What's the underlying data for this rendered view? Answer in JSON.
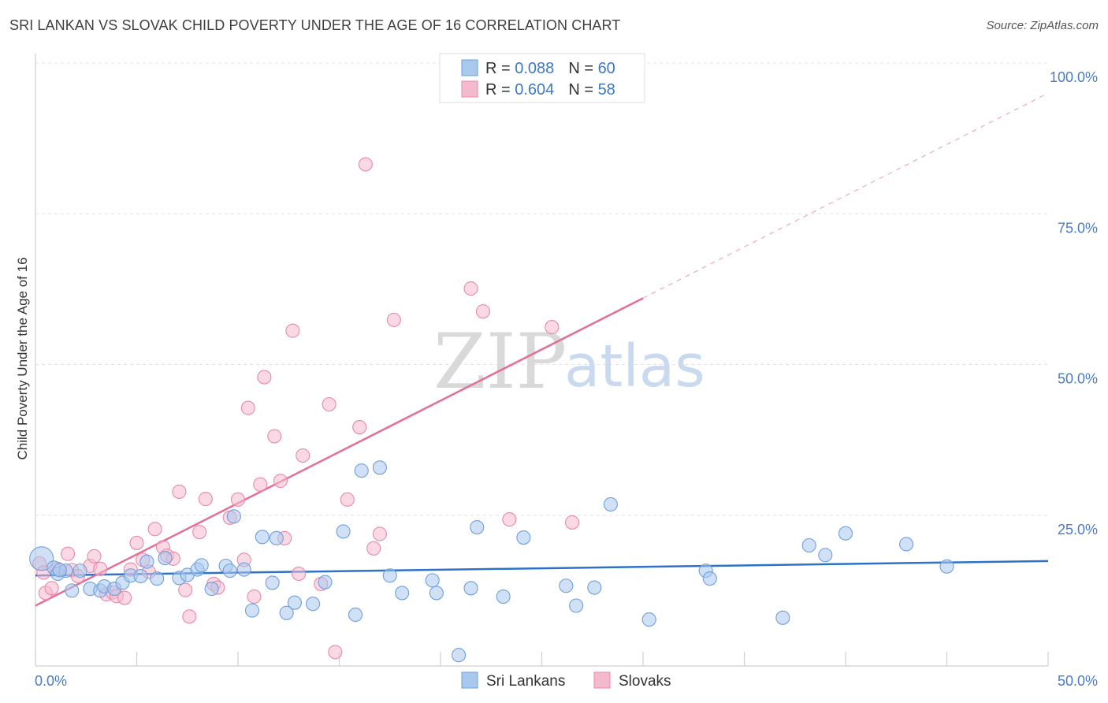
{
  "title": "SRI LANKAN VS SLOVAK CHILD POVERTY UNDER THE AGE OF 16 CORRELATION CHART",
  "source": "Source: ZipAtlas.com",
  "watermark": {
    "zip": "ZIP",
    "atlas": "atlas"
  },
  "colors": {
    "blue_fill": "#a9c8ee",
    "blue_stroke": "#6f9fdc",
    "blue_line": "#2d72c8",
    "pink_fill": "#f5b9cd",
    "pink_stroke": "#e889a8",
    "pink_line": "#e46f96",
    "grid": "#e3e3e3",
    "axis": "#cfcfcf",
    "tick_label": "#4a7cc4"
  },
  "legend": {
    "rows": [
      {
        "r_label": "R = ",
        "r_value": "0.088",
        "n_label": "N = ",
        "n_value": "60"
      },
      {
        "r_label": "R = ",
        "r_value": "0.604",
        "n_label": "N = ",
        "n_value": "58"
      }
    ]
  },
  "bottom_legend": [
    "Sri Lankans",
    "Slovaks"
  ],
  "chart_data": {
    "type": "scatter",
    "title": "SRI LANKAN VS SLOVAK CHILD POVERTY UNDER THE AGE OF 16 CORRELATION CHART",
    "xlabel": "",
    "ylabel": "Child Poverty Under the Age of 16",
    "xlim": [
      0,
      50
    ],
    "ylim": [
      0,
      100
    ],
    "x_tick_labels": [
      "0.0%",
      "50.0%"
    ],
    "y_ticks": [
      25,
      50,
      75,
      100
    ],
    "y_tick_labels": [
      "25.0%",
      "50.0%",
      "75.0%",
      "100.0%"
    ],
    "grid": true,
    "legend_position": "top-center",
    "series": [
      {
        "name": "Sri Lankans",
        "r": 0.088,
        "n": 60,
        "trend": {
          "x": [
            0,
            50
          ],
          "y": [
            15.0,
            17.4
          ],
          "style": "solid"
        },
        "points": [
          [
            0.3,
            17.8
          ],
          [
            0.9,
            16.3
          ],
          [
            1.1,
            15.3
          ],
          [
            1.5,
            15.8
          ],
          [
            1.8,
            12.5
          ],
          [
            2.2,
            15.8
          ],
          [
            2.7,
            12.8
          ],
          [
            3.2,
            12.5
          ],
          [
            3.4,
            13.2
          ],
          [
            3.9,
            12.8
          ],
          [
            4.3,
            13.8
          ],
          [
            4.7,
            15.0
          ],
          [
            5.2,
            14.9
          ],
          [
            5.5,
            17.3
          ],
          [
            6.0,
            14.5
          ],
          [
            6.4,
            17.9
          ],
          [
            7.1,
            14.6
          ],
          [
            7.5,
            15.1
          ],
          [
            8.0,
            16.0
          ],
          [
            8.2,
            16.7
          ],
          [
            8.7,
            12.8
          ],
          [
            9.4,
            16.6
          ],
          [
            9.6,
            15.8
          ],
          [
            9.8,
            24.8
          ],
          [
            10.3,
            16.0
          ],
          [
            10.7,
            9.2
          ],
          [
            11.2,
            21.4
          ],
          [
            11.7,
            13.8
          ],
          [
            11.9,
            21.2
          ],
          [
            12.4,
            8.8
          ],
          [
            12.8,
            10.5
          ],
          [
            13.7,
            10.3
          ],
          [
            14.3,
            13.9
          ],
          [
            15.2,
            22.3
          ],
          [
            15.8,
            8.5
          ],
          [
            16.1,
            32.4
          ],
          [
            17.0,
            32.9
          ],
          [
            17.5,
            15.0
          ],
          [
            18.1,
            12.1
          ],
          [
            19.6,
            14.2
          ],
          [
            19.8,
            12.1
          ],
          [
            20.9,
            1.8
          ],
          [
            21.5,
            12.9
          ],
          [
            21.8,
            23.0
          ],
          [
            23.1,
            11.5
          ],
          [
            24.1,
            21.3
          ],
          [
            26.2,
            13.3
          ],
          [
            26.7,
            10.0
          ],
          [
            27.6,
            13.0
          ],
          [
            28.4,
            26.8
          ],
          [
            30.3,
            7.7
          ],
          [
            33.1,
            15.8
          ],
          [
            33.3,
            14.5
          ],
          [
            36.9,
            8.0
          ],
          [
            38.2,
            20.0
          ],
          [
            39.0,
            18.4
          ],
          [
            40.0,
            22.0
          ],
          [
            43.0,
            20.2
          ],
          [
            45.0,
            16.5
          ],
          [
            1.2,
            15.9
          ]
        ]
      },
      {
        "name": "Slovaks",
        "r": 0.604,
        "n": 58,
        "trend": {
          "x": [
            0,
            30
          ],
          "y": [
            10.0,
            61.0
          ],
          "style": "solid",
          "dashed_extension": {
            "x": [
              30,
              50
            ],
            "y": [
              61.0,
              95.0
            ]
          }
        },
        "points": [
          [
            0.2,
            17.0
          ],
          [
            0.5,
            12.1
          ],
          [
            0.8,
            12.9
          ],
          [
            1.1,
            16.1
          ],
          [
            1.6,
            18.6
          ],
          [
            1.8,
            15.9
          ],
          [
            2.1,
            14.9
          ],
          [
            2.7,
            16.6
          ],
          [
            2.9,
            18.2
          ],
          [
            3.2,
            16.1
          ],
          [
            3.5,
            11.9
          ],
          [
            3.8,
            12.2
          ],
          [
            4.0,
            11.6
          ],
          [
            4.4,
            11.3
          ],
          [
            4.7,
            16.0
          ],
          [
            5.0,
            20.4
          ],
          [
            5.3,
            17.6
          ],
          [
            5.6,
            15.6
          ],
          [
            5.9,
            22.7
          ],
          [
            6.3,
            19.7
          ],
          [
            6.5,
            18.3
          ],
          [
            6.8,
            17.8
          ],
          [
            7.1,
            28.9
          ],
          [
            7.4,
            12.6
          ],
          [
            7.6,
            8.2
          ],
          [
            8.1,
            22.2
          ],
          [
            8.4,
            27.7
          ],
          [
            8.8,
            13.6
          ],
          [
            9.0,
            13.0
          ],
          [
            9.6,
            24.6
          ],
          [
            10.0,
            27.6
          ],
          [
            10.3,
            17.6
          ],
          [
            10.5,
            42.8
          ],
          [
            10.8,
            11.5
          ],
          [
            11.1,
            30.1
          ],
          [
            11.3,
            47.9
          ],
          [
            11.8,
            38.1
          ],
          [
            12.1,
            30.7
          ],
          [
            12.3,
            21.2
          ],
          [
            12.7,
            55.6
          ],
          [
            13.0,
            15.3
          ],
          [
            13.2,
            34.9
          ],
          [
            14.1,
            13.6
          ],
          [
            14.5,
            43.4
          ],
          [
            14.8,
            2.3
          ],
          [
            15.4,
            27.6
          ],
          [
            16.0,
            39.6
          ],
          [
            16.3,
            83.2
          ],
          [
            16.7,
            19.5
          ],
          [
            17.0,
            21.9
          ],
          [
            17.7,
            57.4
          ],
          [
            20.8,
            99.5
          ],
          [
            21.5,
            62.6
          ],
          [
            22.1,
            58.8
          ],
          [
            23.4,
            24.3
          ],
          [
            25.5,
            56.2
          ],
          [
            26.5,
            23.8
          ],
          [
            0.4,
            15.5
          ]
        ]
      }
    ]
  }
}
